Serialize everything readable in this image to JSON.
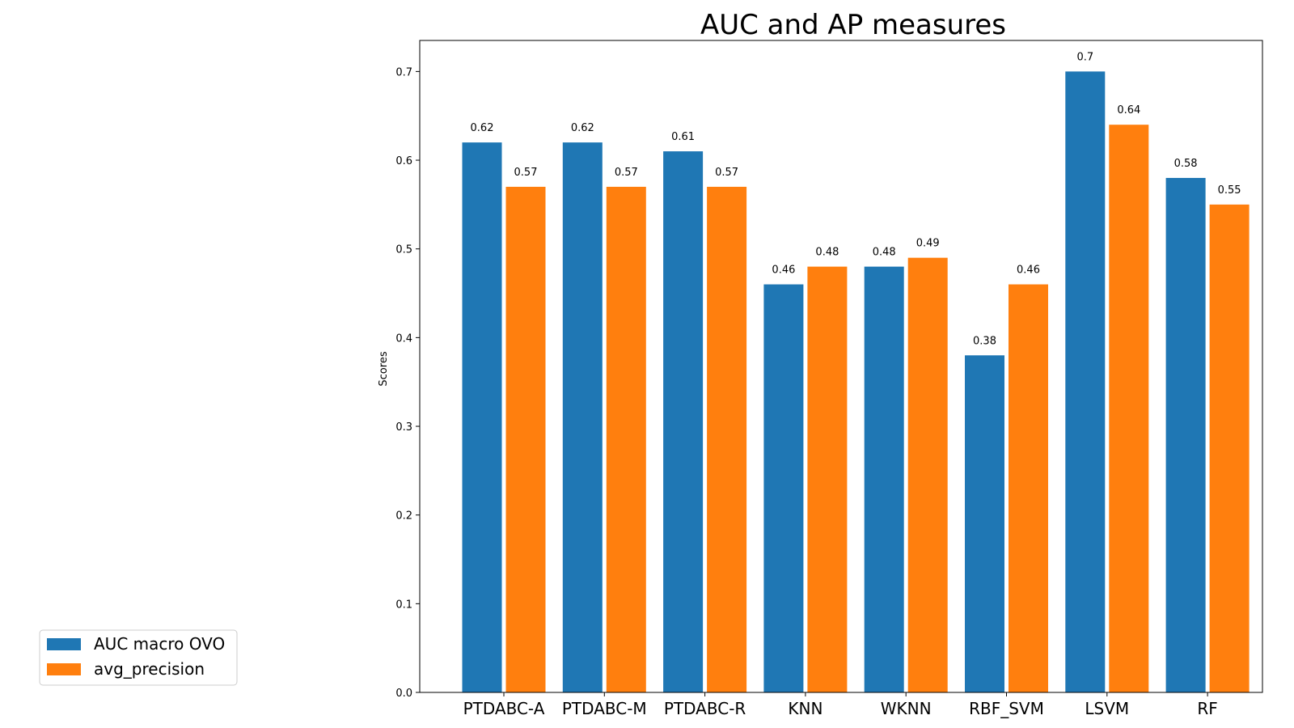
{
  "chart_data": {
    "type": "bar",
    "title": "AUC and AP measures",
    "xlabel": "",
    "ylabel": "Scores",
    "ylim": [
      0,
      0.735
    ],
    "yticks": [
      "0.0",
      "0.1",
      "0.2",
      "0.3",
      "0.4",
      "0.5",
      "0.6",
      "0.7"
    ],
    "categories": [
      "PTDABC-A",
      "PTDABC-M",
      "PTDABC-R",
      "KNN",
      "WKNN",
      "RBF_SVM",
      "LSVM",
      "RF"
    ],
    "series": [
      {
        "name": "AUC macro OVO",
        "color": "#1f77b4",
        "values": [
          0.62,
          0.62,
          0.61,
          0.46,
          0.48,
          0.38,
          0.7,
          0.58
        ],
        "labels": [
          "0.62",
          "0.62",
          "0.61",
          "0.46",
          "0.48",
          "0.38",
          "0.7",
          "0.58"
        ]
      },
      {
        "name": "avg_precision",
        "color": "#ff7f0e",
        "values": [
          0.57,
          0.57,
          0.57,
          0.48,
          0.49,
          0.46,
          0.64,
          0.55
        ],
        "labels": [
          "0.57",
          "0.57",
          "0.57",
          "0.48",
          "0.49",
          "0.46",
          "0.64",
          "0.55"
        ]
      }
    ],
    "grid": false,
    "legend_position": "bottom-left"
  }
}
